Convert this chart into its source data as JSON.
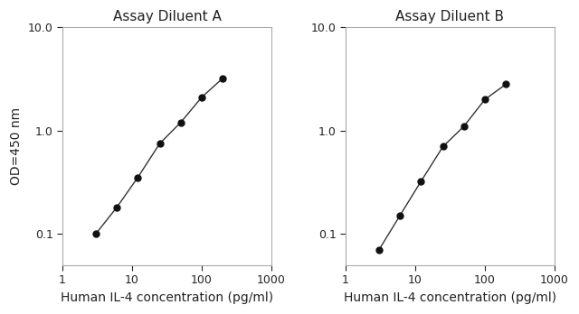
{
  "panel_A_title": "Assay Diluent A",
  "panel_B_title": "Assay Diluent B",
  "xlabel": "Human IL-4 concentration (pg/ml)",
  "ylabel": "OD=450 nm",
  "panel_A_x": [
    3,
    6,
    12,
    25,
    50,
    100,
    200
  ],
  "panel_A_y": [
    0.1,
    0.18,
    0.35,
    0.75,
    1.2,
    2.1,
    3.2
  ],
  "panel_B_x": [
    3,
    6,
    12,
    25,
    50,
    100,
    200
  ],
  "panel_B_y": [
    0.07,
    0.15,
    0.32,
    0.7,
    1.1,
    2.0,
    2.8
  ],
  "xlim": [
    1,
    1000
  ],
  "ylim_A": [
    0.05,
    10
  ],
  "ylim_B": [
    0.05,
    10
  ],
  "line_color": "#333333",
  "marker_color": "#111111",
  "bg_color": "#ffffff",
  "title_fontsize": 11,
  "label_fontsize": 10,
  "tick_fontsize": 9,
  "marker_size": 5,
  "linewidth": 1.0,
  "yticks": [
    0.1,
    1,
    10
  ],
  "xticks": [
    1,
    10,
    100,
    1000
  ]
}
